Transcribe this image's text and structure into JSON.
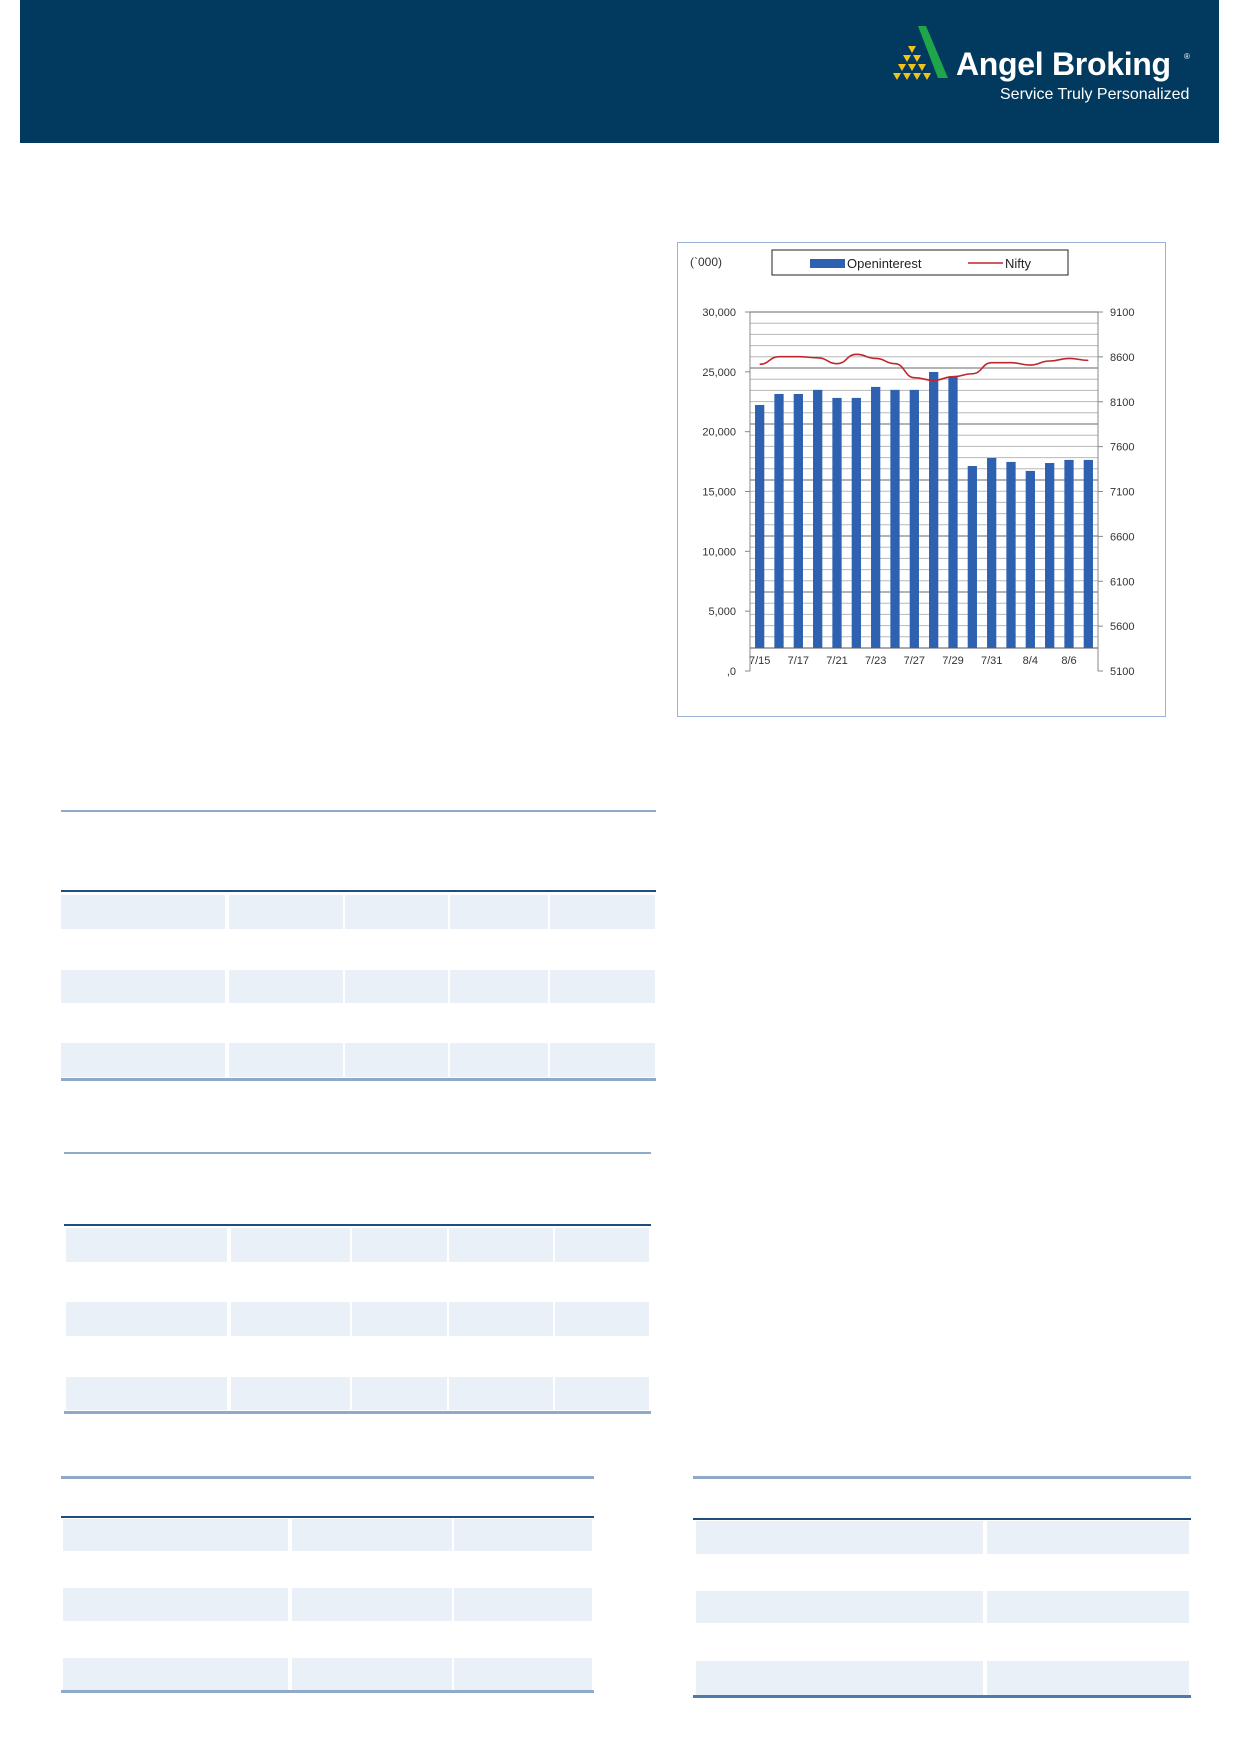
{
  "header": {
    "brand_name": "Angel Broking",
    "registered_mark": "®",
    "tagline": "Service Truly Personalized",
    "background_color": "#023a5f",
    "logo_green": "#1fa64a",
    "logo_yellow": "#f2c21b"
  },
  "chart_data": {
    "type": "bar+line",
    "unit_label": "(`000)",
    "categories": [
      "7/15",
      "7/16",
      "7/17",
      "7/20",
      "7/21",
      "7/22",
      "7/23",
      "7/24",
      "7/27",
      "7/28",
      "7/29",
      "7/30",
      "7/31",
      "8/3",
      "8/4",
      "8/5",
      "8/6",
      "8/7"
    ],
    "x_tick_labels": [
      "7/15",
      "7/17",
      "7/21",
      "7/23",
      "7/27",
      "7/29",
      "7/31",
      "8/4",
      "8/6"
    ],
    "left_axis": {
      "ylim": [
        0,
        30000
      ],
      "tick_labels": [
        ",0",
        "5,000",
        "10,000",
        "15,000",
        "20,000",
        "25,000",
        "30,000"
      ]
    },
    "right_axis": {
      "ylim": [
        5100,
        9100
      ],
      "tick_labels": [
        "5100",
        "5600",
        "6100",
        "6600",
        "7100",
        "7600",
        "8100",
        "8600",
        "9100"
      ]
    },
    "grid": true,
    "legend": "top",
    "series": [
      {
        "name": "Openinterest",
        "type": "bar",
        "axis": "left",
        "color": "#2e62b0",
        "values": [
          22230,
          23150,
          23150,
          23490,
          22820,
          22820,
          23740,
          23490,
          23490,
          24990,
          24600,
          17130,
          17800,
          17470,
          16720,
          17380,
          17640,
          17640
        ]
      },
      {
        "name": "Nifty",
        "type": "line",
        "axis": "right",
        "color": "#c0272d",
        "values": [
          8517,
          8602,
          8602,
          8590,
          8524,
          8628,
          8583,
          8524,
          8368,
          8338,
          8379,
          8412,
          8535,
          8535,
          8509,
          8554,
          8583,
          8561
        ]
      }
    ]
  }
}
